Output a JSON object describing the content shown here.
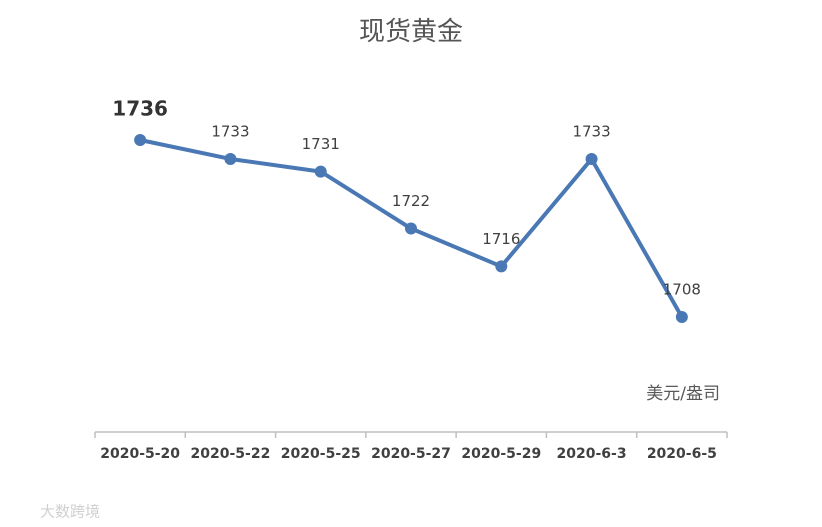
{
  "chart_data": {
    "type": "line",
    "title": "现货黄金",
    "categories": [
      "2020-5-20",
      "2020-5-22",
      "2020-5-25",
      "2020-5-27",
      "2020-5-29",
      "2020-6-3",
      "2020-6-5"
    ],
    "values": [
      1736,
      1733,
      1731,
      1722,
      1716,
      1733,
      1708
    ],
    "color": "#4a78b4",
    "unit_label": "美元/盎司",
    "watermark": "大数跨境"
  }
}
